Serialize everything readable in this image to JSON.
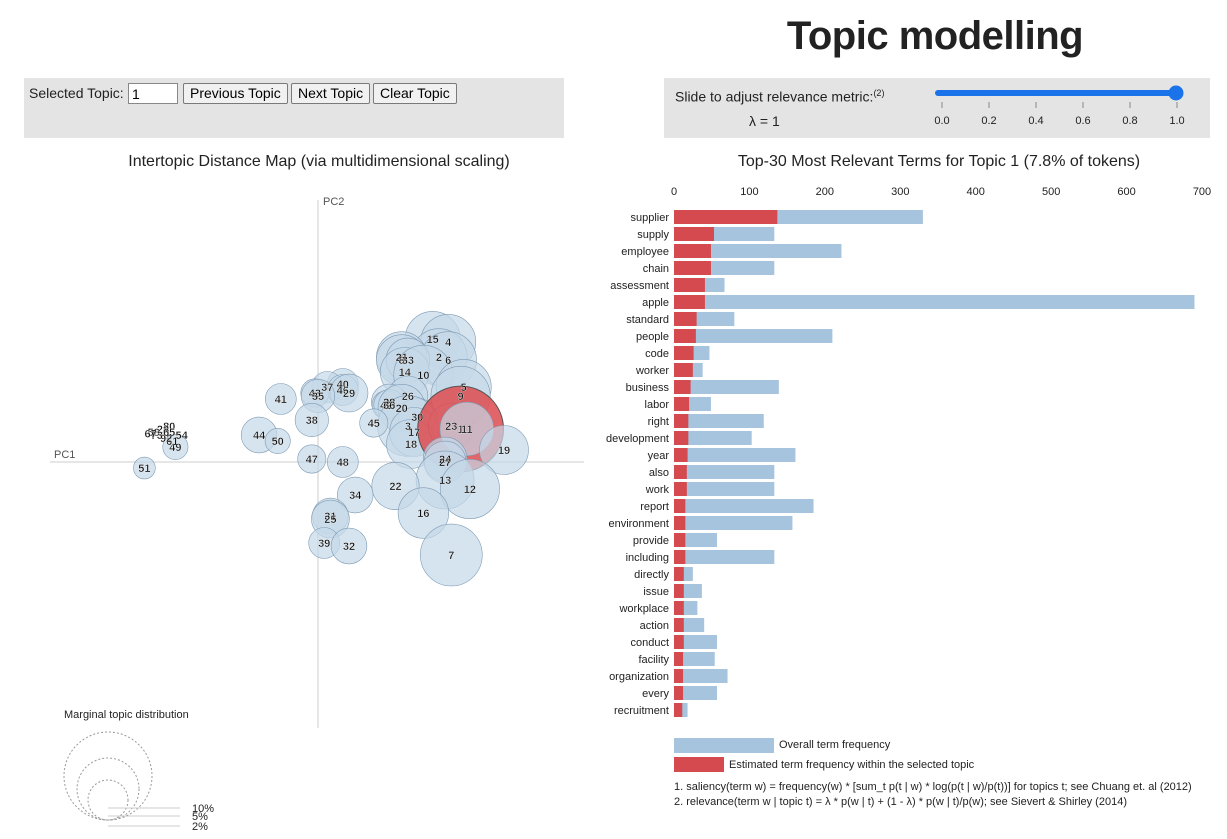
{
  "page_title": "Topic modelling",
  "controls": {
    "selected_topic_label": "Selected Topic:",
    "selected_topic_value": "1",
    "prev_label": "Previous Topic",
    "next_label": "Next Topic",
    "clear_label": "Clear Topic",
    "slider_label": "Slide to adjust relevance metric:",
    "slider_footnote": "(2)",
    "lambda_text": "λ = 1",
    "lambda_value": 1.0,
    "slider_ticks": [
      "0.0",
      "0.2",
      "0.4",
      "0.6",
      "0.8",
      "1.0"
    ]
  },
  "colors": {
    "blue_bar": "#a6c4de",
    "red_bar": "#d44a4e",
    "slider": "#1a73e8",
    "circle_fill": "#c5d8e8",
    "circle_stroke": "#7f9bb4",
    "selected_circle": "#dd4b4f"
  },
  "chart_data": [
    {
      "type": "scatter",
      "title": "Intertopic Distance Map (via multidimensional scaling)",
      "xlabel": "PC1",
      "ylabel": "PC2",
      "legend_title": "Marginal topic distribution",
      "legend_sizes": [
        "2%",
        "5%",
        "10%"
      ],
      "selected_topic": "1",
      "topics": [
        {
          "label": "15",
          "x": 0.37,
          "y": 0.41,
          "size": 1.9
        },
        {
          "label": "4",
          "x": 0.42,
          "y": 0.4,
          "size": 1.9
        },
        {
          "label": "2",
          "x": 0.39,
          "y": 0.35,
          "size": 2.0
        },
        {
          "label": "6",
          "x": 0.42,
          "y": 0.34,
          "size": 2.0
        },
        {
          "label": "21",
          "x": 0.27,
          "y": 0.35,
          "size": 1.6
        },
        {
          "label": "8",
          "x": 0.27,
          "y": 0.34,
          "size": 1.6
        },
        {
          "label": "33",
          "x": 0.29,
          "y": 0.34,
          "size": 1.2
        },
        {
          "label": "14",
          "x": 0.28,
          "y": 0.3,
          "size": 1.5
        },
        {
          "label": "10",
          "x": 0.34,
          "y": 0.29,
          "size": 2.2
        },
        {
          "label": "5",
          "x": 0.47,
          "y": 0.25,
          "size": 1.9
        },
        {
          "label": "9",
          "x": 0.46,
          "y": 0.22,
          "size": 2.2
        },
        {
          "label": "26",
          "x": 0.29,
          "y": 0.22,
          "size": 1.0
        },
        {
          "label": "28",
          "x": 0.23,
          "y": 0.2,
          "size": 0.8
        },
        {
          "label": "42",
          "x": 0.22,
          "y": 0.19,
          "size": 0.5
        },
        {
          "label": "36",
          "x": 0.23,
          "y": 0.19,
          "size": 0.6
        },
        {
          "label": "20",
          "x": 0.27,
          "y": 0.18,
          "size": 1.4
        },
        {
          "label": "30",
          "x": 0.32,
          "y": 0.15,
          "size": 0.9
        },
        {
          "label": "3",
          "x": 0.29,
          "y": 0.12,
          "size": 2.3
        },
        {
          "label": "17",
          "x": 0.31,
          "y": 0.1,
          "size": 1.5
        },
        {
          "label": "18",
          "x": 0.3,
          "y": 0.06,
          "size": 1.5
        },
        {
          "label": "23",
          "x": 0.43,
          "y": 0.12,
          "size": 1.3
        },
        {
          "label": "1",
          "x": 0.46,
          "y": 0.11,
          "size": 4.6
        },
        {
          "label": "11",
          "x": 0.48,
          "y": 0.11,
          "size": 1.8
        },
        {
          "label": "19",
          "x": 0.6,
          "y": 0.04,
          "size": 1.5
        },
        {
          "label": "24",
          "x": 0.41,
          "y": 0.01,
          "size": 1.2
        },
        {
          "label": "27",
          "x": 0.41,
          "y": 0.0,
          "size": 1.1
        },
        {
          "label": "13",
          "x": 0.41,
          "y": -0.06,
          "size": 2.1
        },
        {
          "label": "12",
          "x": 0.49,
          "y": -0.09,
          "size": 2.2
        },
        {
          "label": "22",
          "x": 0.25,
          "y": -0.08,
          "size": 1.4
        },
        {
          "label": "16",
          "x": 0.34,
          "y": -0.17,
          "size": 1.6
        },
        {
          "label": "7",
          "x": 0.43,
          "y": -0.31,
          "size": 2.4
        },
        {
          "label": "40",
          "x": 0.08,
          "y": 0.26,
          "size": 0.6
        },
        {
          "label": "37",
          "x": 0.03,
          "y": 0.25,
          "size": 0.6
        },
        {
          "label": "46",
          "x": 0.08,
          "y": 0.24,
          "size": 0.6
        },
        {
          "label": "43",
          "x": -0.01,
          "y": 0.23,
          "size": 0.5
        },
        {
          "label": "29",
          "x": 0.1,
          "y": 0.23,
          "size": 0.9
        },
        {
          "label": "35",
          "x": 0.0,
          "y": 0.22,
          "size": 0.7
        },
        {
          "label": "41",
          "x": -0.12,
          "y": 0.21,
          "size": 0.6
        },
        {
          "label": "38",
          "x": -0.02,
          "y": 0.14,
          "size": 0.7
        },
        {
          "label": "45",
          "x": 0.18,
          "y": 0.13,
          "size": 0.5
        },
        {
          "label": "44",
          "x": -0.19,
          "y": 0.09,
          "size": 0.8
        },
        {
          "label": "50",
          "x": -0.13,
          "y": 0.07,
          "size": 0.4
        },
        {
          "label": "47",
          "x": -0.02,
          "y": 0.01,
          "size": 0.5
        },
        {
          "label": "48",
          "x": 0.08,
          "y": 0.0,
          "size": 0.6
        },
        {
          "label": "34",
          "x": 0.12,
          "y": -0.11,
          "size": 0.8
        },
        {
          "label": "31",
          "x": 0.04,
          "y": -0.18,
          "size": 0.8
        },
        {
          "label": "25",
          "x": 0.04,
          "y": -0.19,
          "size": 0.9
        },
        {
          "label": "39",
          "x": 0.02,
          "y": -0.27,
          "size": 0.6
        },
        {
          "label": "32",
          "x": 0.1,
          "y": -0.28,
          "size": 0.8
        },
        {
          "label": "49",
          "x": -0.46,
          "y": 0.05,
          "size": 0.4
        },
        {
          "label": "51",
          "x": -0.56,
          "y": -0.02,
          "size": 0.3
        },
        {
          "label": "54",
          "x": -0.44,
          "y": 0.09,
          "size": 0.1
        },
        {
          "label": "61",
          "x": -0.47,
          "y": 0.07,
          "size": 0.1
        },
        {
          "label": "92",
          "x": -0.49,
          "y": 0.08,
          "size": 0.1
        },
        {
          "label": "80",
          "x": -0.48,
          "y": 0.12,
          "size": 0.1
        },
        {
          "label": "58",
          "x": -0.53,
          "y": 0.1,
          "size": 0.1
        },
        {
          "label": "24",
          "x": -0.5,
          "y": 0.11,
          "size": 0.1
        },
        {
          "label": "65",
          "x": -0.48,
          "y": 0.1,
          "size": 0.1
        },
        {
          "label": "73",
          "x": -0.52,
          "y": 0.09,
          "size": 0.1
        },
        {
          "label": "67",
          "x": -0.54,
          "y": 0.095,
          "size": 0.1
        }
      ]
    },
    {
      "type": "bar",
      "orientation": "horizontal",
      "title": "Top-30 Most Relevant Terms for Topic 1 (7.8% of tokens)",
      "xlim": [
        0,
        700
      ],
      "xticks": [
        0,
        100,
        200,
        300,
        400,
        500,
        600,
        700
      ],
      "categories": [
        "supplier",
        "supply",
        "employee",
        "chain",
        "assessment",
        "apple",
        "standard",
        "people",
        "code",
        "worker",
        "business",
        "labor",
        "right",
        "development",
        "year",
        "also",
        "work",
        "report",
        "environment",
        "provide",
        "including",
        "directly",
        "issue",
        "workplace",
        "action",
        "conduct",
        "facility",
        "organization",
        "every",
        "recruitment"
      ],
      "series": [
        {
          "name": "Overall term frequency",
          "color": "#a6c4de",
          "values": [
            330,
            133,
            222,
            133,
            67,
            690,
            80,
            210,
            47,
            38,
            139,
            49,
            119,
            103,
            161,
            133,
            133,
            185,
            157,
            57,
            133,
            25,
            37,
            31,
            40,
            57,
            54,
            71,
            57,
            18
          ]
        },
        {
          "name": "Estimated term frequency within the selected topic",
          "color": "#d44a4e",
          "values": [
            137,
            53,
            49,
            49,
            41,
            41,
            30,
            29,
            26,
            25,
            22,
            20,
            19,
            19,
            18,
            17,
            17,
            15,
            15,
            15,
            15,
            13,
            13,
            13,
            13,
            13,
            12,
            12,
            12,
            11
          ]
        }
      ],
      "legend": [
        "Overall term frequency",
        "Estimated term frequency within the selected topic"
      ]
    }
  ],
  "footnotes": [
    "1. saliency(term w) = frequency(w) * [sum_t p(t | w) * log(p(t | w)/p(t))] for topics t; see Chuang et. al (2012)",
    "2. relevance(term w | topic t) = λ * p(w | t) + (1 - λ) * p(w | t)/p(w); see Sievert & Shirley (2014)"
  ]
}
